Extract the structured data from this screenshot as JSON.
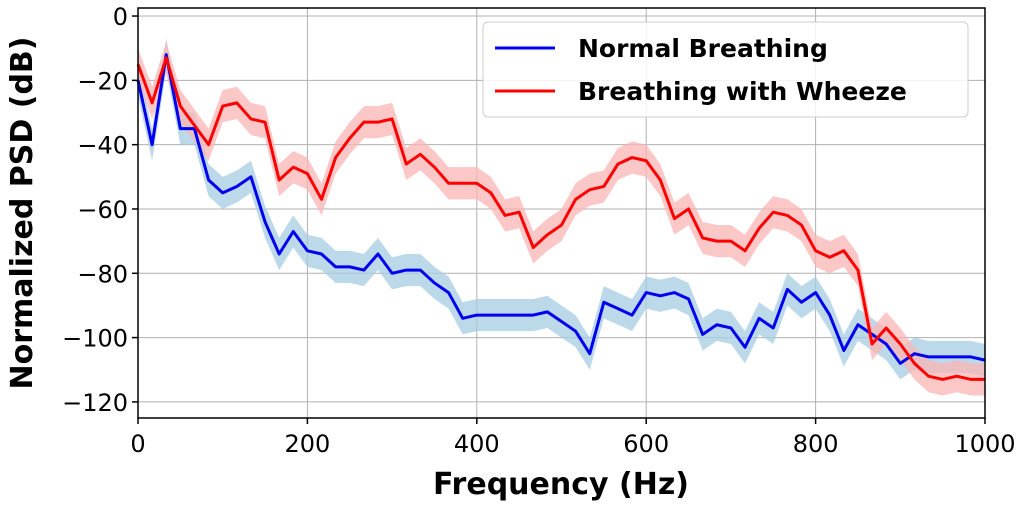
{
  "chart_data": {
    "type": "line",
    "title": "",
    "xlabel": "Frequency (Hz)",
    "ylabel": "Normalized PSD (dB)",
    "xlim": [
      0,
      1000
    ],
    "ylim": [
      -125,
      2.5
    ],
    "xticks": [
      0,
      200,
      400,
      600,
      800,
      1000
    ],
    "yticks": [
      0,
      -20,
      -40,
      -60,
      -80,
      -100,
      -120
    ],
    "grid": true,
    "legend_position": "top-right",
    "x_step_hz": 16.6667,
    "band_halfwidth_db": 5,
    "series": [
      {
        "name": "Normal Breathing",
        "color": "#0000ee",
        "band_color": "#a6cce3",
        "values": [
          -20,
          -40,
          -12,
          -35,
          -35,
          -51,
          -55,
          -53,
          -50,
          -64,
          -74,
          -67,
          -73,
          -74,
          -78,
          -78,
          -79,
          -74,
          -80,
          -79,
          -79,
          -83,
          -86,
          -94,
          -93,
          -93,
          -93,
          -93,
          -93,
          -92,
          -95,
          -98,
          -105,
          -89,
          -91,
          -93,
          -86,
          -87,
          -86,
          -88,
          -99,
          -96,
          -97,
          -103,
          -94,
          -97,
          -85,
          -89,
          -86,
          -93,
          -104,
          -96,
          -99,
          -102,
          -108,
          -105,
          -106,
          -106,
          -106,
          -106,
          -107
        ]
      },
      {
        "name": "Breathing with Wheeze",
        "color": "#ff0000",
        "band_color": "#fbb4b4",
        "values": [
          -15,
          -27,
          -13,
          -28,
          -34,
          -40,
          -28,
          -27,
          -32,
          -33,
          -51,
          -47,
          -49,
          -57,
          -44,
          -38,
          -33,
          -33,
          -32,
          -46,
          -43,
          -47,
          -52,
          -52,
          -52,
          -55,
          -62,
          -61,
          -72,
          -68,
          -65,
          -57,
          -54,
          -53,
          -46,
          -44,
          -45,
          -51,
          -63,
          -60,
          -69,
          -70,
          -70,
          -73,
          -66,
          -61,
          -62,
          -65,
          -73,
          -75,
          -73,
          -79,
          -102,
          -97,
          -102,
          -108,
          -112,
          -113,
          -112,
          -113,
          -113
        ]
      }
    ]
  }
}
